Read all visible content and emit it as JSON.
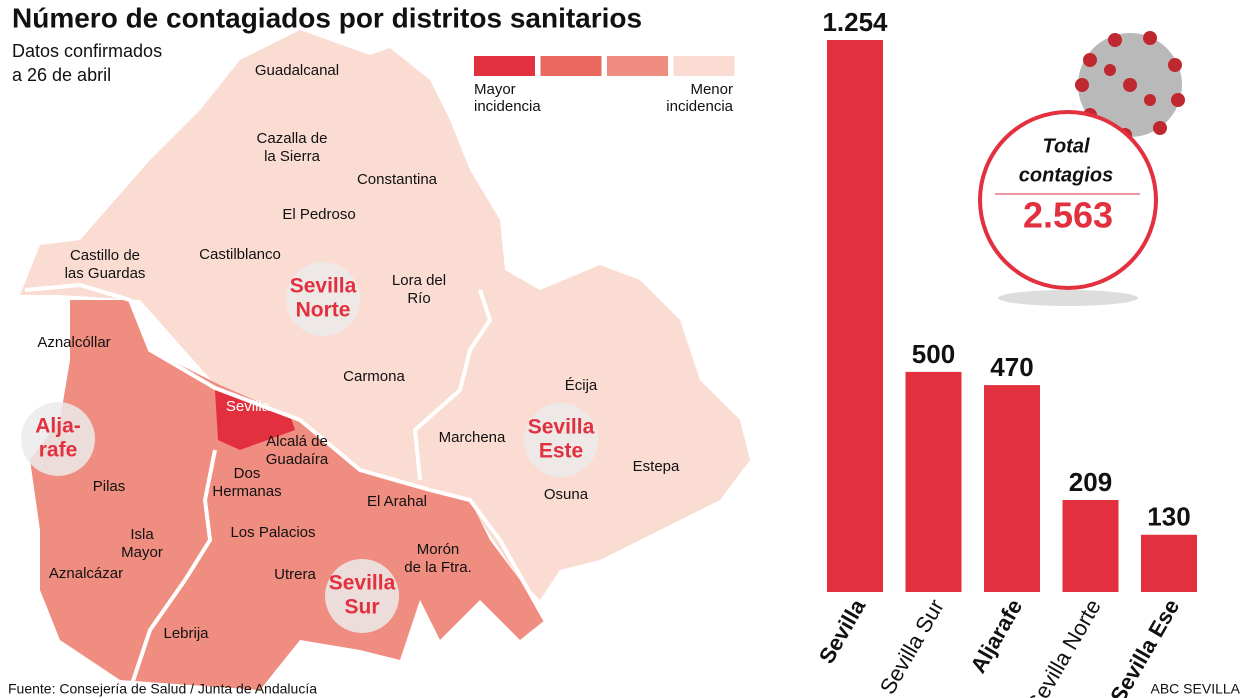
{
  "header": {
    "title": "Número de contagiados por distritos sanitarios",
    "subtitle": [
      "Datos confirmados",
      "a 26 de abril"
    ]
  },
  "map": {
    "legend": {
      "colors": [
        "#e3303f",
        "#e9685f",
        "#ef8d80",
        "#fbdcd2"
      ],
      "high": [
        "Mayor",
        "incidencia"
      ],
      "low": [
        "Menor",
        "incidencia"
      ]
    },
    "towns": [
      [
        "Guadalcanal"
      ],
      [
        "Cazalla de",
        "la Sierra"
      ],
      [
        "Constantina"
      ],
      [
        "El Pedroso"
      ],
      [
        "Castilblanco"
      ],
      [
        "Castillo de",
        "las Guardas"
      ],
      [
        "Lora del",
        "Río"
      ],
      [
        "Aznalcóllar"
      ],
      [
        "Carmona"
      ],
      [
        "Écija"
      ],
      [
        "Sevilla"
      ],
      [
        "Alcalá de",
        "Guadaíra"
      ],
      [
        "Marchena"
      ],
      [
        "Dos",
        "Hermanas"
      ],
      [
        "Estepa"
      ],
      [
        "Pilas"
      ],
      [
        "Osuna"
      ],
      [
        "El Arahal"
      ],
      [
        "Los Palacios"
      ],
      [
        "Isla",
        "Mayor"
      ],
      [
        "Morón",
        "de la Ftra."
      ],
      [
        "Aznalcázar"
      ],
      [
        "Utrera"
      ],
      [
        "Lebrija"
      ]
    ],
    "districts": [
      [
        "Sevilla",
        "Norte"
      ],
      [
        "Alja-",
        "rafe"
      ],
      [
        "Sevilla",
        "Este"
      ],
      [
        "Sevilla",
        "Sur"
      ]
    ]
  },
  "chart_data": {
    "type": "bar",
    "categories": [
      "Sevilla",
      "Sevilla Sur",
      "Aljarafe",
      "Sevilla Norte",
      "Sevilla Ese"
    ],
    "values": [
      1254,
      500,
      470,
      209,
      130
    ],
    "value_labels": [
      "1.254",
      "500",
      "470",
      "209",
      "130"
    ],
    "color": "#e3303f",
    "total": {
      "label": [
        "Total",
        "contagios"
      ],
      "value": 2563,
      "value_label": "2.563"
    }
  },
  "footer": {
    "source": "Fuente: Consejería de Salud / Junta de Andalucía",
    "credit": "ABC SEVILLA"
  }
}
